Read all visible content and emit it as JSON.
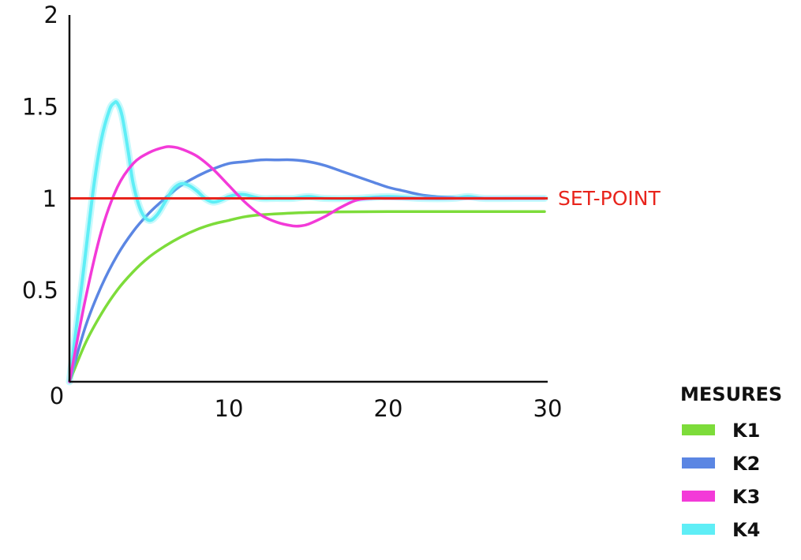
{
  "chart_data": {
    "type": "line",
    "xlim": [
      0,
      30
    ],
    "ylim": [
      0,
      2
    ],
    "x_ticks": [
      "10",
      "20",
      "30"
    ],
    "y_ticks": [
      "2",
      "1.5",
      "1",
      "0.5"
    ],
    "origin_label": "0",
    "grid": false,
    "setpoint": {
      "value": 1,
      "label": "SET-POINT",
      "tick_label": "1",
      "color": "#e8241c"
    },
    "legend": {
      "title": "MESURES",
      "position": "bottom-right"
    },
    "series": [
      {
        "name": "K1",
        "color": "#7ddc3a",
        "x": [
          0,
          1,
          2,
          3,
          4,
          5,
          6,
          7,
          8,
          9,
          10,
          11,
          12,
          14,
          16,
          18,
          20,
          22,
          24,
          26,
          28,
          29.8
        ],
        "y": [
          0,
          0.21,
          0.37,
          0.5,
          0.6,
          0.68,
          0.74,
          0.79,
          0.83,
          0.86,
          0.88,
          0.9,
          0.91,
          0.92,
          0.925,
          0.927,
          0.928,
          0.928,
          0.928,
          0.928,
          0.928,
          0.928
        ]
      },
      {
        "name": "K2",
        "color": "#5b86e3",
        "x": [
          0,
          1,
          2,
          3,
          4,
          5,
          6,
          7,
          8,
          9,
          10,
          11,
          12,
          13,
          14,
          15,
          16,
          17,
          18,
          19,
          20,
          21,
          22,
          23,
          24,
          26,
          28,
          29.8
        ],
        "y": [
          0,
          0.3,
          0.52,
          0.69,
          0.82,
          0.92,
          1.0,
          1.07,
          1.12,
          1.16,
          1.19,
          1.2,
          1.21,
          1.21,
          1.21,
          1.2,
          1.18,
          1.15,
          1.12,
          1.09,
          1.06,
          1.04,
          1.02,
          1.01,
          1.005,
          1.0,
          1.0,
          1.0
        ]
      },
      {
        "name": "K3",
        "color": "#f33ad8",
        "x": [
          0,
          1,
          2,
          3,
          4,
          5,
          6,
          6.5,
          7,
          8,
          9,
          10,
          11,
          12,
          13,
          14,
          14.5,
          15,
          16,
          17,
          18,
          19,
          20,
          22,
          24,
          26,
          28,
          29.8
        ],
        "y": [
          0,
          0.45,
          0.82,
          1.06,
          1.19,
          1.25,
          1.28,
          1.28,
          1.27,
          1.23,
          1.16,
          1.07,
          0.98,
          0.91,
          0.87,
          0.85,
          0.85,
          0.86,
          0.9,
          0.95,
          0.99,
          1.0,
          1.0,
          1.0,
          1.0,
          1.0,
          1.0,
          1.0
        ]
      },
      {
        "name": "K4",
        "color": "#5feef6",
        "x": [
          0,
          0.8,
          1.5,
          2,
          2.5,
          2.8,
          3,
          3.3,
          3.7,
          4,
          4.5,
          5,
          5.5,
          6,
          6.5,
          7,
          7.5,
          8,
          8.5,
          9,
          9.5,
          10,
          10.5,
          11,
          12,
          13,
          14,
          15,
          16,
          18,
          20,
          22,
          24,
          25,
          26,
          28,
          29.8
        ],
        "y": [
          0,
          0.55,
          1.05,
          1.32,
          1.48,
          1.52,
          1.52,
          1.45,
          1.25,
          1.08,
          0.93,
          0.88,
          0.91,
          0.98,
          1.05,
          1.08,
          1.07,
          1.04,
          1.0,
          0.98,
          0.99,
          1.01,
          1.02,
          1.02,
          1.0,
          1.0,
          1.0,
          1.01,
          1.0,
          1.0,
          1.01,
          1.0,
          1.0,
          1.01,
          1.0,
          1.0,
          1.0
        ]
      }
    ]
  }
}
